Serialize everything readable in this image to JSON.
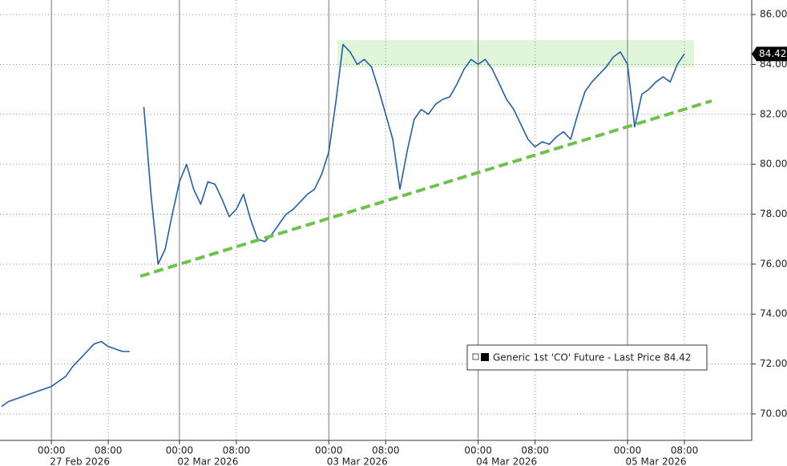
{
  "chart_data": {
    "type": "line",
    "x": [
      "2026-02-26 14:00",
      "2026-02-26 15:00",
      "2026-02-26 16:00",
      "2026-02-26 17:00",
      "2026-02-26 18:00",
      "2026-02-26 19:00",
      "2026-02-26 20:00",
      "2026-02-27 00:00",
      "2026-02-27 01:00",
      "2026-02-27 02:00",
      "2026-02-27 03:00",
      "2026-02-27 04:00",
      "2026-02-27 05:00",
      "2026-02-27 06:00",
      "2026-02-27 07:00",
      "2026-02-27 08:00",
      "2026-02-27 09:00",
      "2026-02-27 10:00",
      "2026-02-27 11:00",
      "2026-03-01 18:00",
      "2026-03-01 19:00",
      "2026-03-01 20:00",
      "2026-03-01 21:00",
      "2026-03-01 22:00",
      "2026-03-01 23:00",
      "2026-03-02 00:00",
      "2026-03-02 01:00",
      "2026-03-02 02:00",
      "2026-03-02 03:00",
      "2026-03-02 04:00",
      "2026-03-02 05:00",
      "2026-03-02 06:00",
      "2026-03-02 07:00",
      "2026-03-02 08:00",
      "2026-03-02 09:00",
      "2026-03-02 10:00",
      "2026-03-02 11:00",
      "2026-03-02 12:00",
      "2026-03-02 13:00",
      "2026-03-02 14:00",
      "2026-03-02 15:00",
      "2026-03-02 16:00",
      "2026-03-02 17:00",
      "2026-03-02 18:00",
      "2026-03-02 19:00",
      "2026-03-02 20:00",
      "2026-03-03 00:00",
      "2026-03-03 01:00",
      "2026-03-03 02:00",
      "2026-03-03 03:00",
      "2026-03-03 04:00",
      "2026-03-03 05:00",
      "2026-03-03 06:00",
      "2026-03-03 07:00",
      "2026-03-03 08:00",
      "2026-03-03 09:00",
      "2026-03-03 10:00",
      "2026-03-03 11:00",
      "2026-03-03 12:00",
      "2026-03-03 13:00",
      "2026-03-03 14:00",
      "2026-03-03 15:00",
      "2026-03-03 16:00",
      "2026-03-03 17:00",
      "2026-03-03 18:00",
      "2026-03-03 19:00",
      "2026-03-03 20:00",
      "2026-03-04 00:00",
      "2026-03-04 01:00",
      "2026-03-04 02:00",
      "2026-03-04 03:00",
      "2026-03-04 04:00",
      "2026-03-04 05:00",
      "2026-03-04 06:00",
      "2026-03-04 07:00",
      "2026-03-04 08:00",
      "2026-03-04 09:00",
      "2026-03-04 10:00",
      "2026-03-04 11:00",
      "2026-03-04 12:00",
      "2026-03-04 13:00",
      "2026-03-04 14:00",
      "2026-03-04 15:00",
      "2026-03-04 16:00",
      "2026-03-04 17:00",
      "2026-03-04 18:00",
      "2026-03-04 19:00",
      "2026-03-04 20:00",
      "2026-03-05 00:00",
      "2026-03-05 01:00",
      "2026-03-05 02:00",
      "2026-03-05 03:00",
      "2026-03-05 04:00",
      "2026-03-05 05:00",
      "2026-03-05 06:00",
      "2026-03-05 07:00",
      "2026-03-05 08:00"
    ],
    "series": [
      {
        "name": "Generic 1st 'CO' Future - Last Price 84.42",
        "color": "#1f5fa8",
        "values": [
          70.3,
          70.5,
          70.6,
          70.7,
          70.8,
          70.9,
          71.0,
          71.1,
          71.3,
          71.5,
          71.9,
          72.2,
          72.5,
          72.8,
          72.9,
          72.7,
          72.6,
          72.5,
          72.5,
          null,
          82.3,
          78.8,
          76.0,
          76.6,
          78.0,
          79.3,
          80.0,
          79.0,
          78.4,
          79.3,
          79.2,
          78.6,
          77.9,
          78.2,
          78.8,
          77.8,
          77.0,
          76.9,
          77.2,
          77.6,
          78.0,
          78.2,
          78.5,
          78.8,
          79.0,
          79.6,
          80.5,
          82.5,
          84.8,
          84.5,
          84.0,
          84.2,
          83.9,
          83.0,
          82.0,
          81.0,
          79.0,
          80.5,
          81.8,
          82.2,
          82.0,
          82.4,
          82.6,
          82.7,
          83.2,
          83.8,
          84.2,
          84.0,
          84.2,
          83.8,
          83.2,
          82.6,
          82.2,
          81.6,
          81.0,
          80.7,
          80.9,
          80.8,
          81.1,
          81.3,
          81.0,
          82.0,
          82.9,
          83.3,
          83.6,
          83.9,
          84.3,
          84.5,
          84.0,
          81.5,
          82.8,
          83.0,
          83.3,
          83.5,
          83.3,
          84.0,
          84.42
        ]
      }
    ],
    "ylim": [
      68.94,
      86.58
    ],
    "yticks": [
      {
        "value": 70,
        "label": "70.00"
      },
      {
        "value": 72,
        "label": "72.00"
      },
      {
        "value": 74,
        "label": "74.00"
      },
      {
        "value": 76,
        "label": "76.00"
      },
      {
        "value": 78,
        "label": "78.00"
      },
      {
        "value": 80,
        "label": "80.00"
      },
      {
        "value": 82,
        "label": "82.00"
      },
      {
        "value": 84,
        "label": "84.00"
      },
      {
        "value": 86,
        "label": "86.00"
      }
    ],
    "xticks": [
      {
        "value": "2026-02-27 00:00",
        "label": "00:00"
      },
      {
        "value": "2026-02-27 08:00",
        "label": "08:00"
      },
      {
        "value": "2026-03-02 00:00",
        "label": "00:00"
      },
      {
        "value": "2026-03-02 08:00",
        "label": "08:00"
      },
      {
        "value": "2026-03-03 00:00",
        "label": "00:00"
      },
      {
        "value": "2026-03-03 08:00",
        "label": "08:00"
      },
      {
        "value": "2026-03-04 00:00",
        "label": "00:00"
      },
      {
        "value": "2026-03-04 08:00",
        "label": "08:00"
      },
      {
        "value": "2026-03-05 00:00",
        "label": "00:00"
      },
      {
        "value": "2026-03-05 08:00",
        "label": "08:00"
      }
    ],
    "date_labels": [
      "27 Feb 2026",
      "02 Mar 2026",
      "03 Mar 2026",
      "04 Mar 2026",
      "05 Mar 2026"
    ],
    "last_value_label": {
      "value": 84.42,
      "label": "84.42"
    },
    "grid": true
  }
}
